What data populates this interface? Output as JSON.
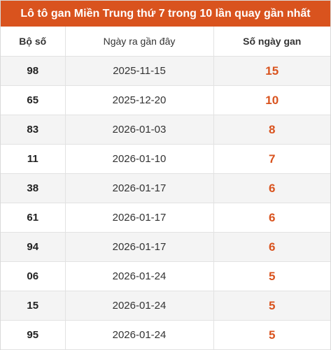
{
  "title": "Lô tô gan Miền Trung thứ 7 trong 10 lần quay gần nhất",
  "colors": {
    "header_background": "#d9531e",
    "days_value": "#d9531e"
  },
  "table": {
    "headers": {
      "number": "Bộ số",
      "last_date": "Ngày ra gần đây",
      "gan_days": "Số ngày gan"
    },
    "rows": [
      {
        "number": "98",
        "last_date": "2025-11-15",
        "gan_days": "15"
      },
      {
        "number": "65",
        "last_date": "2025-12-20",
        "gan_days": "10"
      },
      {
        "number": "83",
        "last_date": "2026-01-03",
        "gan_days": "8"
      },
      {
        "number": "11",
        "last_date": "2026-01-10",
        "gan_days": "7"
      },
      {
        "number": "38",
        "last_date": "2026-01-17",
        "gan_days": "6"
      },
      {
        "number": "61",
        "last_date": "2026-01-17",
        "gan_days": "6"
      },
      {
        "number": "94",
        "last_date": "2026-01-17",
        "gan_days": "6"
      },
      {
        "number": "06",
        "last_date": "2026-01-24",
        "gan_days": "5"
      },
      {
        "number": "15",
        "last_date": "2026-01-24",
        "gan_days": "5"
      },
      {
        "number": "95",
        "last_date": "2026-01-24",
        "gan_days": "5"
      }
    ]
  }
}
